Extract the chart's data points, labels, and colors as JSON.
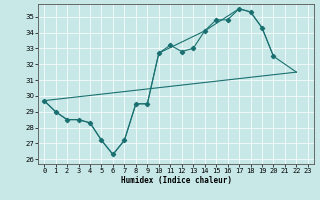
{
  "xlabel": "Humidex (Indice chaleur)",
  "bg_color": "#c8e8e8",
  "line_color": "#1a7070",
  "grid_color": "#ffffff",
  "xlim": [
    -0.5,
    23.5
  ],
  "ylim": [
    25.7,
    35.8
  ],
  "yticks": [
    26,
    27,
    28,
    29,
    30,
    31,
    32,
    33,
    34,
    35
  ],
  "xticks": [
    0,
    1,
    2,
    3,
    4,
    5,
    6,
    7,
    8,
    9,
    10,
    11,
    12,
    13,
    14,
    15,
    16,
    17,
    18,
    19,
    20,
    21,
    22,
    23
  ],
  "series1_x": [
    0,
    1,
    2,
    3,
    4,
    5,
    6,
    7,
    8,
    9,
    10,
    11,
    12,
    13,
    14,
    15,
    16,
    17,
    18,
    19,
    20
  ],
  "series1_y": [
    29.7,
    29.0,
    28.5,
    28.5,
    28.3,
    27.2,
    26.3,
    27.2,
    29.5,
    29.5,
    32.7,
    33.2,
    32.8,
    33.0,
    34.1,
    34.8,
    34.8,
    35.5,
    35.3,
    34.3,
    32.5
  ],
  "series2_x": [
    0,
    22
  ],
  "series2_y": [
    29.7,
    31.5
  ],
  "series3_x": [
    0,
    1,
    2,
    3,
    4,
    5,
    6,
    7,
    8,
    9,
    10,
    14,
    17,
    18,
    19,
    20,
    21,
    22
  ],
  "series3_y": [
    29.7,
    29.0,
    28.5,
    28.5,
    28.3,
    27.2,
    26.3,
    27.2,
    29.5,
    29.5,
    32.7,
    34.1,
    35.5,
    35.3,
    34.3,
    32.5,
    32.0,
    31.5
  ],
  "xlabel_fontsize": 5.5,
  "tick_fontsize": 5,
  "linewidth": 0.8,
  "markersize": 2.2
}
